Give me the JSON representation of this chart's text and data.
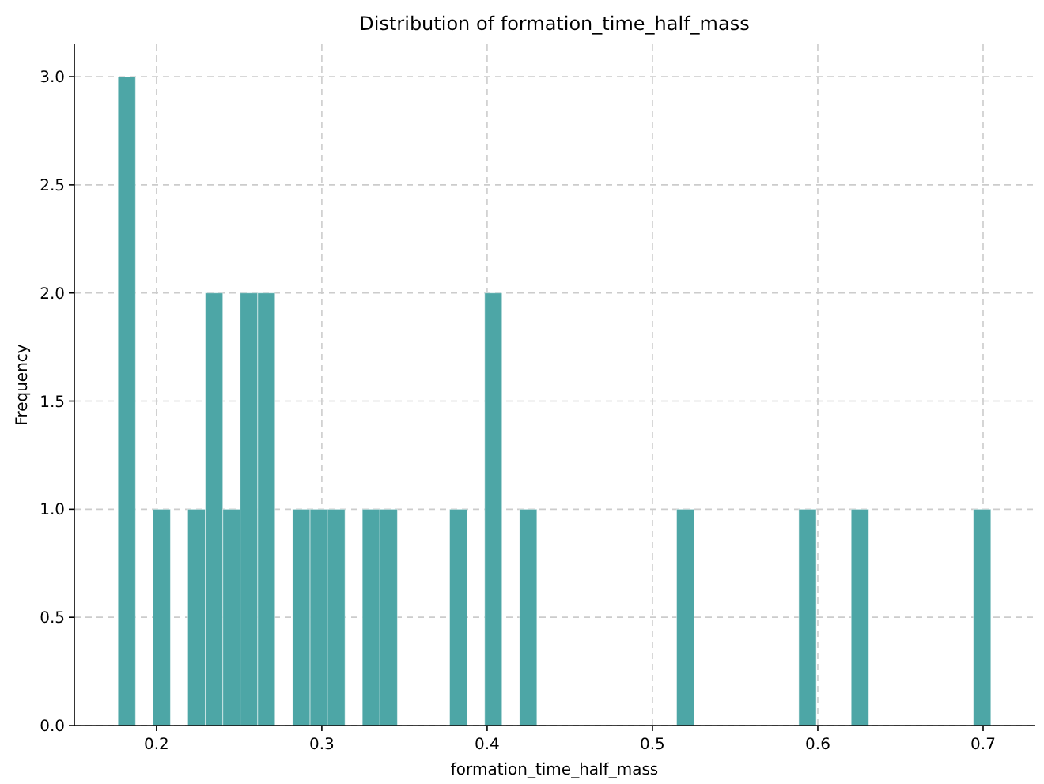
{
  "chart_data": {
    "type": "histogram",
    "title": "Distribution of formation_time_half_mass",
    "xlabel": "formation_time_half_mass",
    "ylabel": "Frequency",
    "bins": [
      0.1767,
      0.1873,
      0.1978,
      0.2084,
      0.2189,
      0.2295,
      0.2401,
      0.2506,
      0.2612,
      0.2717,
      0.2823,
      0.2929,
      0.3034,
      0.314,
      0.3245,
      0.3351,
      0.3457,
      0.3562,
      0.3668,
      0.3773,
      0.3879,
      0.3985,
      0.409,
      0.4196,
      0.4301,
      0.4407,
      0.4513,
      0.4618,
      0.4724,
      0.4829,
      0.4935,
      0.5041,
      0.5146,
      0.5252,
      0.5357,
      0.5463,
      0.5569,
      0.5674,
      0.578,
      0.5885,
      0.5991,
      0.6097,
      0.6202,
      0.6308,
      0.6413,
      0.6519,
      0.6625,
      0.673,
      0.6836,
      0.6941,
      0.7047
    ],
    "values": [
      3,
      0,
      1,
      0,
      1,
      2,
      1,
      2,
      2,
      0,
      1,
      1,
      1,
      0,
      1,
      1,
      0,
      0,
      0,
      1,
      0,
      2,
      0,
      1,
      0,
      0,
      0,
      0,
      0,
      0,
      0,
      0,
      1,
      0,
      0,
      0,
      0,
      0,
      0,
      1,
      0,
      0,
      1,
      0,
      0,
      0,
      0,
      0,
      0,
      1
    ],
    "color": "#4da6a6",
    "xlim": [
      0.1503,
      0.7311
    ],
    "xticks": [
      {
        "value": 0.2,
        "label": "0.2"
      },
      {
        "value": 0.3,
        "label": "0.3"
      },
      {
        "value": 0.4,
        "label": "0.4"
      },
      {
        "value": 0.5,
        "label": "0.5"
      },
      {
        "value": 0.6,
        "label": "0.6"
      },
      {
        "value": 0.7,
        "label": "0.7"
      }
    ],
    "ylim": [
      0,
      3.15
    ],
    "yticks": [
      {
        "value": 0,
        "label": "0.0"
      },
      {
        "value": 0.5,
        "label": "0.5"
      },
      {
        "value": 1,
        "label": "1.0"
      },
      {
        "value": 1.5,
        "label": "1.5"
      },
      {
        "value": 2,
        "label": "2.0"
      },
      {
        "value": 2.5,
        "label": "2.5"
      },
      {
        "value": 3,
        "label": "3.0"
      }
    ],
    "grid": true,
    "line_style": "dashed"
  }
}
